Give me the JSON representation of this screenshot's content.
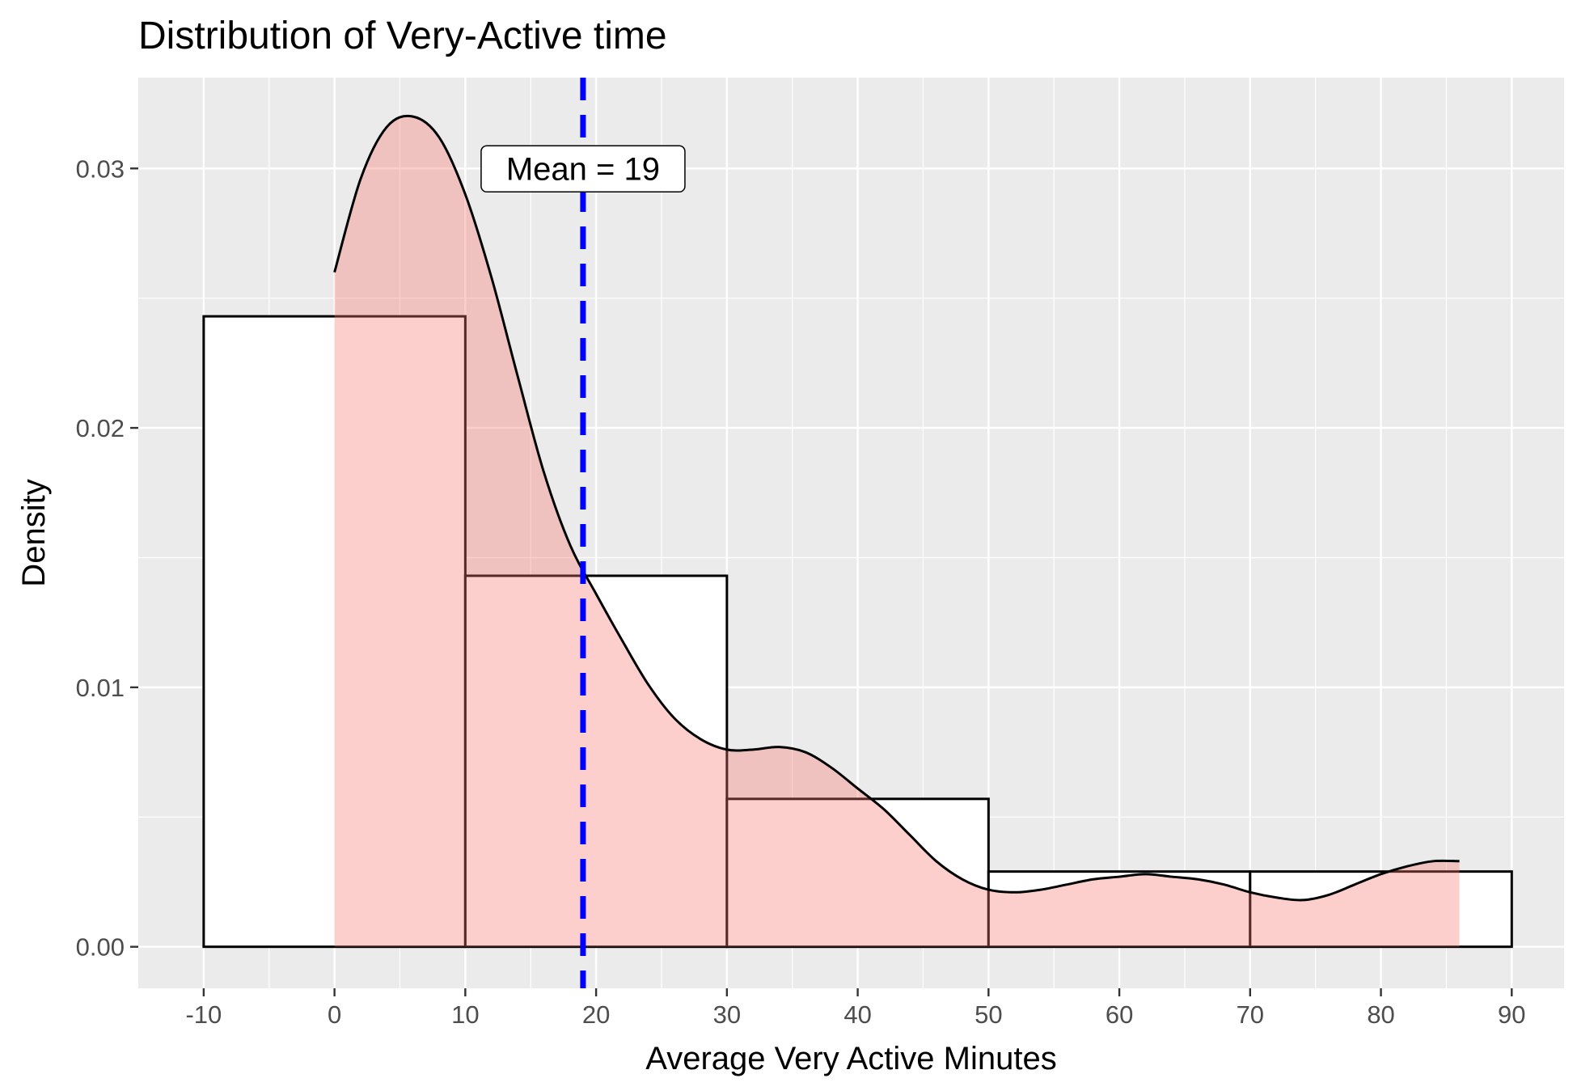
{
  "chart_data": {
    "type": "histogram",
    "title": "Distribution of Very-Active time",
    "xlabel": "Average Very Active Minutes",
    "ylabel": "Density",
    "xlim": [
      -15,
      94
    ],
    "ylim": [
      -0.0016,
      0.0335
    ],
    "x_ticks": [
      -10,
      0,
      10,
      20,
      30,
      40,
      50,
      60,
      70,
      80,
      90
    ],
    "x_tick_labels": [
      "-10",
      "0",
      "10",
      "20",
      "30",
      "40",
      "50",
      "60",
      "70",
      "80",
      "90"
    ],
    "y_ticks": [
      0.0,
      0.01,
      0.02,
      0.03
    ],
    "y_tick_labels": [
      "0.00",
      "0.01",
      "0.02",
      "0.03"
    ],
    "grid": true,
    "histogram": {
      "bins": [
        {
          "x0": -10,
          "x1": 10,
          "density": 0.0243
        },
        {
          "x0": 10,
          "x1": 30,
          "density": 0.0143
        },
        {
          "x0": 30,
          "x1": 50,
          "density": 0.0057
        },
        {
          "x0": 50,
          "x1": 70,
          "density": 0.0029
        },
        {
          "x0": 70,
          "x1": 90,
          "density": 0.0029
        }
      ],
      "fill": "#ffffff",
      "stroke": "#000000"
    },
    "density": {
      "fill": "#f8766d",
      "fill_opacity": 0.35,
      "points": [
        [
          0,
          0.026
        ],
        [
          2,
          0.0296
        ],
        [
          4,
          0.0316
        ],
        [
          6,
          0.032
        ],
        [
          8,
          0.0312
        ],
        [
          10,
          0.029
        ],
        [
          12,
          0.0258
        ],
        [
          14,
          0.022
        ],
        [
          16,
          0.0183
        ],
        [
          18,
          0.0155
        ],
        [
          20,
          0.0136
        ],
        [
          22,
          0.0118
        ],
        [
          24,
          0.0101
        ],
        [
          26,
          0.0088
        ],
        [
          28,
          0.008
        ],
        [
          30,
          0.0076
        ],
        [
          32,
          0.0076
        ],
        [
          34,
          0.0077
        ],
        [
          36,
          0.0075
        ],
        [
          38,
          0.0069
        ],
        [
          40,
          0.0061
        ],
        [
          42,
          0.0053
        ],
        [
          44,
          0.0043
        ],
        [
          46,
          0.0033
        ],
        [
          48,
          0.0026
        ],
        [
          50,
          0.0022
        ],
        [
          52,
          0.0021
        ],
        [
          54,
          0.0022
        ],
        [
          56,
          0.0024
        ],
        [
          58,
          0.0026
        ],
        [
          60,
          0.0027
        ],
        [
          62,
          0.0028
        ],
        [
          64,
          0.0027
        ],
        [
          66,
          0.0026
        ],
        [
          68,
          0.0024
        ],
        [
          70,
          0.0021
        ],
        [
          72,
          0.0019
        ],
        [
          74,
          0.0018
        ],
        [
          76,
          0.002
        ],
        [
          78,
          0.0024
        ],
        [
          80,
          0.0028
        ],
        [
          82,
          0.0031
        ],
        [
          84,
          0.0033
        ],
        [
          86,
          0.0033
        ]
      ]
    },
    "mean_line": {
      "x": 19,
      "color": "#0000ff",
      "style": "dashed"
    },
    "annotation": {
      "text": "Mean = 19",
      "x": 19,
      "y": 0.03
    }
  }
}
